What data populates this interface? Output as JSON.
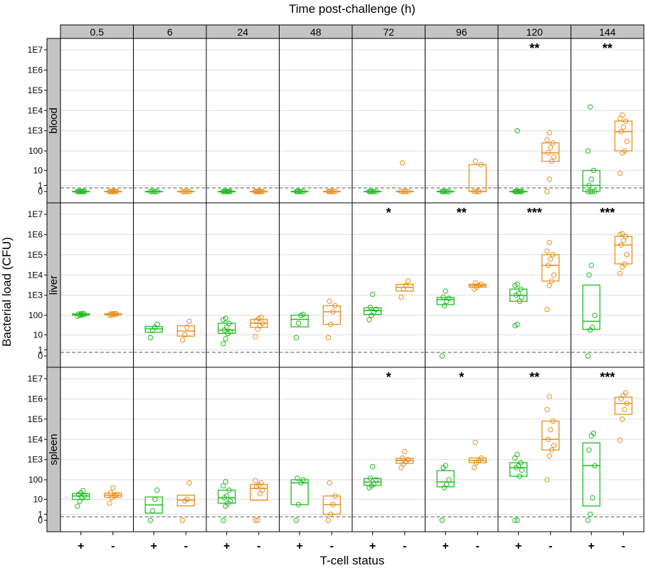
{
  "chart_data": {
    "type": "box",
    "title": "",
    "top_axis_label": "Time post-challenge (h)",
    "xlabel": "T-cell status",
    "ylabel": "Bacterial load (CFU)",
    "y_scale": "log10(x+1)",
    "y_tick_labels": [
      "0",
      "1",
      "10",
      "100",
      "1E3",
      "1E4",
      "1E5",
      "1E6",
      "1E7"
    ],
    "detection_limit": 0.5,
    "time_points": [
      "0.5",
      "6",
      "24",
      "48",
      "72",
      "96",
      "120",
      "144"
    ],
    "categories": [
      "+",
      "-"
    ],
    "tissues": [
      "blood",
      "liver",
      "spleen"
    ],
    "colors": {
      "+": "#22bb22",
      "-": "#e8901c",
      "strip": "#c4c4c4",
      "grid": "#dddddd"
    },
    "significance": {
      "blood": [
        "",
        "",
        "",
        "",
        "",
        "",
        "**",
        "**"
      ],
      "liver": [
        "",
        "",
        "",
        "",
        "*",
        "**",
        "***",
        "***"
      ],
      "spleen": [
        "",
        "",
        "",
        "",
        "*",
        "*",
        "**",
        "***"
      ]
    },
    "data": {
      "blood": [
        {
          "plus": [
            0,
            0,
            0,
            0,
            0,
            0,
            0
          ],
          "minus": [
            0,
            0,
            0,
            0,
            0,
            0,
            0
          ]
        },
        {
          "plus": [
            0,
            0,
            0,
            0
          ],
          "minus": [
            0,
            0,
            0,
            0
          ]
        },
        {
          "plus": [
            0,
            0,
            0,
            0,
            0,
            0,
            0,
            0
          ],
          "minus": [
            0,
            0,
            0,
            0,
            0,
            0,
            0,
            0
          ]
        },
        {
          "plus": [
            0,
            0,
            0,
            0,
            0
          ],
          "minus": [
            0,
            0,
            0,
            0,
            0
          ]
        },
        {
          "plus": [
            0,
            0,
            0,
            0,
            0
          ],
          "minus": [
            0,
            0,
            0,
            0,
            25
          ]
        },
        {
          "plus": [
            0,
            0,
            0,
            0,
            0
          ],
          "minus": [
            0,
            0,
            0,
            20,
            30
          ]
        },
        {
          "plus": [
            0,
            0,
            0,
            0,
            0,
            0,
            0,
            0,
            1000
          ],
          "minus": [
            0,
            3,
            30,
            50,
            80,
            150,
            250,
            350,
            800
          ]
        },
        {
          "plus": [
            0,
            0,
            0,
            0,
            1,
            3,
            10,
            100,
            15000
          ],
          "minus": [
            7,
            80,
            100,
            300,
            900,
            1500,
            3000,
            4000,
            6000
          ]
        }
      ],
      "liver": [
        {
          "plus": [
            90,
            100,
            105,
            110,
            115,
            120,
            125
          ],
          "minus": [
            100,
            105,
            110,
            115,
            118,
            120,
            122
          ]
        },
        {
          "plus": [
            7,
            17,
            25,
            35
          ],
          "minus": [
            5,
            10,
            25,
            50
          ]
        },
        {
          "plus": [
            3,
            6,
            12,
            15,
            18,
            25,
            40,
            60,
            70
          ],
          "minus": [
            8,
            20,
            30,
            40,
            55,
            70,
            80
          ]
        },
        {
          "plus": [
            7,
            40,
            100,
            110
          ],
          "minus": [
            7,
            35,
            150,
            300,
            500
          ]
        },
        {
          "plus": [
            60,
            100,
            150,
            200,
            250,
            1100
          ],
          "minus": [
            800,
            2000,
            3000,
            5000
          ]
        },
        {
          "plus": [
            0,
            300,
            500,
            700,
            800,
            1600
          ],
          "minus": [
            2000,
            2500,
            3000,
            3500,
            4000
          ]
        },
        {
          "plus": [
            30,
            35,
            500,
            800,
            1000,
            1200,
            2000,
            3000,
            3500
          ],
          "minus": [
            200,
            3000,
            5000,
            10000,
            30000,
            60000,
            100000,
            150000,
            400000
          ]
        },
        {
          "plus": [
            0,
            18,
            25,
            100,
            10000,
            30000
          ],
          "minus": [
            12000,
            25000,
            35000,
            100000,
            300000,
            500000,
            800000,
            1000000,
            1100000
          ]
        }
      ],
      "spleen": [
        {
          "plus": [
            4,
            8,
            12,
            15,
            18,
            22,
            28
          ],
          "minus": [
            6,
            12,
            15,
            18,
            22,
            40
          ]
        },
        {
          "plus": [
            0,
            2,
            10,
            30
          ],
          "minus": [
            0,
            8,
            10,
            70
          ]
        },
        {
          "plus": [
            0,
            4,
            6,
            8,
            12,
            15,
            30,
            50,
            80
          ],
          "minus": [
            0,
            0,
            20,
            30,
            45,
            55,
            70,
            90
          ]
        },
        {
          "plus": [
            0,
            5,
            70,
            100,
            120
          ],
          "minus": [
            0,
            1,
            5,
            15,
            70
          ]
        },
        {
          "plus": [
            40,
            50,
            60,
            100,
            120,
            450
          ],
          "minus": [
            400,
            600,
            800,
            1000,
            1200,
            2500
          ]
        },
        {
          "plus": [
            0,
            40,
            60,
            100,
            400,
            500
          ],
          "minus": [
            400,
            700,
            900,
            1200,
            7000
          ]
        },
        {
          "plus": [
            0,
            0,
            150,
            300,
            400,
            500,
            700,
            1200,
            1800
          ],
          "minus": [
            100,
            1500,
            3000,
            5000,
            10000,
            30000,
            80000,
            300000,
            1300000
          ]
        },
        {
          "plus": [
            0,
            1,
            12,
            500,
            3000,
            15000,
            20000
          ],
          "minus": [
            9000,
            100000,
            300000,
            600000,
            1000000,
            1500000,
            2000000
          ]
        }
      ]
    }
  }
}
